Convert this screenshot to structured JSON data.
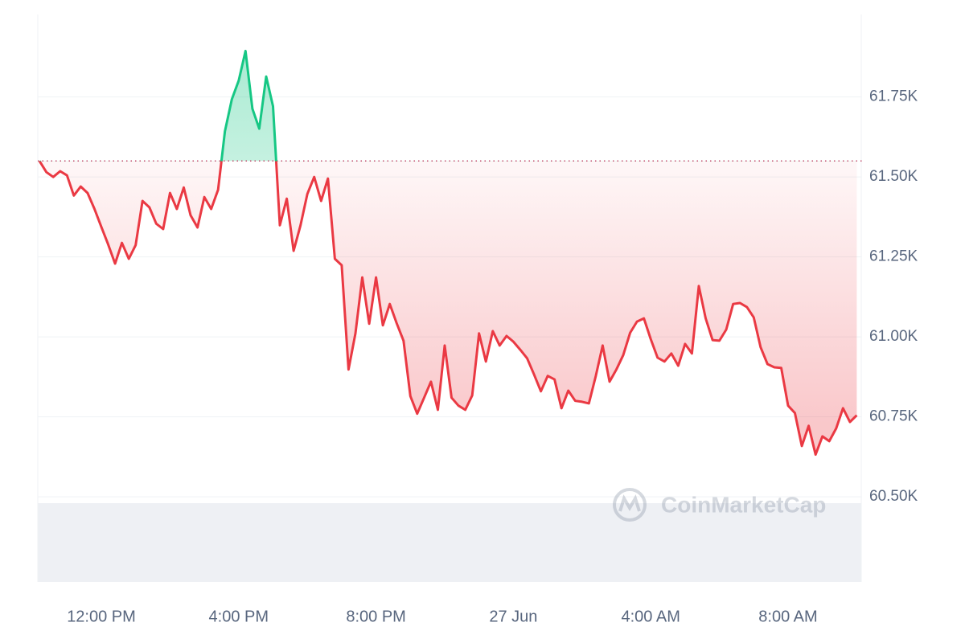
{
  "chart_data": {
    "type": "line",
    "watermark": "CoinMarketCap",
    "x": [
      -1.8,
      -1.6,
      -1.4,
      -1.2,
      -1.0,
      -0.8,
      -0.6,
      -0.4,
      -0.2,
      0.0,
      0.2,
      0.4,
      0.6,
      0.8,
      1.0,
      1.2,
      1.4,
      1.6,
      1.8,
      2.0,
      2.2,
      2.4,
      2.6,
      2.8,
      3.0,
      3.2,
      3.4,
      3.6,
      3.8,
      4.0,
      4.2,
      4.4,
      4.6,
      4.8,
      5.0,
      5.2,
      5.4,
      5.6,
      5.8,
      6.0,
      6.2,
      6.4,
      6.6,
      6.8,
      7.0,
      7.2,
      7.4,
      7.6,
      7.8,
      8.0,
      8.2,
      8.4,
      8.6,
      8.8,
      9.0,
      9.2,
      9.4,
      9.6,
      9.8,
      10.0,
      10.2,
      10.4,
      10.6,
      10.8,
      11.0,
      11.2,
      11.4,
      11.6,
      11.8,
      12.0,
      12.2,
      12.4,
      12.6,
      12.8,
      13.0,
      13.2,
      13.4,
      13.6,
      13.8,
      14.0,
      14.2,
      14.4,
      14.6,
      14.8,
      15.0,
      15.2,
      15.4,
      15.6,
      15.8,
      16.0,
      16.2,
      16.4,
      16.6,
      16.8,
      17.0,
      17.2,
      17.4,
      17.6,
      17.8,
      18.0,
      18.2,
      18.4,
      18.6,
      18.8,
      19.0,
      19.2,
      19.4,
      19.6,
      19.8,
      20.0,
      20.2,
      20.4,
      20.6,
      20.8,
      21.0,
      21.2,
      21.4,
      21.6,
      21.8,
      22.0
    ],
    "values": [
      61550,
      61515,
      61500,
      61518,
      61505,
      61442,
      61470,
      61450,
      61400,
      61344,
      61289,
      61229,
      61294,
      61244,
      61287,
      61425,
      61405,
      61354,
      61337,
      61450,
      61400,
      61467,
      61380,
      61342,
      61437,
      61400,
      61460,
      61643,
      61743,
      61801,
      61894,
      61713,
      61651,
      61814,
      61721,
      61349,
      61432,
      61269,
      61349,
      61447,
      61500,
      61425,
      61495,
      61244,
      61224,
      60898,
      61011,
      61186,
      61041,
      61186,
      61036,
      61103,
      61043,
      60988,
      60815,
      60760,
      60810,
      60860,
      60772,
      60973,
      60810,
      60785,
      60772,
      60817,
      61011,
      60923,
      61018,
      60973,
      61003,
      60985,
      60960,
      60933,
      60883,
      60830,
      60878,
      60867,
      60777,
      60832,
      60800,
      60797,
      60792,
      60878,
      60973,
      60860,
      60898,
      60943,
      61013,
      61048,
      61058,
      60993,
      60935,
      60923,
      60948,
      60910,
      60978,
      60948,
      61159,
      61058,
      60990,
      60988,
      61023,
      61103,
      61106,
      61093,
      61061,
      60968,
      60915,
      60905,
      60903,
      60785,
      60762,
      60659,
      60722,
      60632,
      60689,
      60674,
      60714,
      60777,
      60734,
      60755
    ],
    "reference_line": 61550,
    "color_up": "#16c784",
    "color_down": "#ea3943",
    "xlim": [
      -1.85,
      22.15
    ],
    "xticks": [
      {
        "value": 0,
        "label": "12:00 PM"
      },
      {
        "value": 4,
        "label": "4:00 PM"
      },
      {
        "value": 8,
        "label": "8:00 PM"
      },
      {
        "value": 12,
        "label": "27 Jun"
      },
      {
        "value": 16,
        "label": "4:00 AM"
      },
      {
        "value": 20,
        "label": "8:00 AM"
      }
    ],
    "ylim": [
      60234,
      62008
    ],
    "yticks": [
      {
        "value": 60500,
        "label": "60.50K"
      },
      {
        "value": 60750,
        "label": "60.75K"
      },
      {
        "value": 61000,
        "label": "61.00K"
      },
      {
        "value": 61250,
        "label": "61.25K"
      },
      {
        "value": 61500,
        "label": "61.50K"
      },
      {
        "value": 61750,
        "label": "61.75K"
      }
    ],
    "grid": true
  }
}
